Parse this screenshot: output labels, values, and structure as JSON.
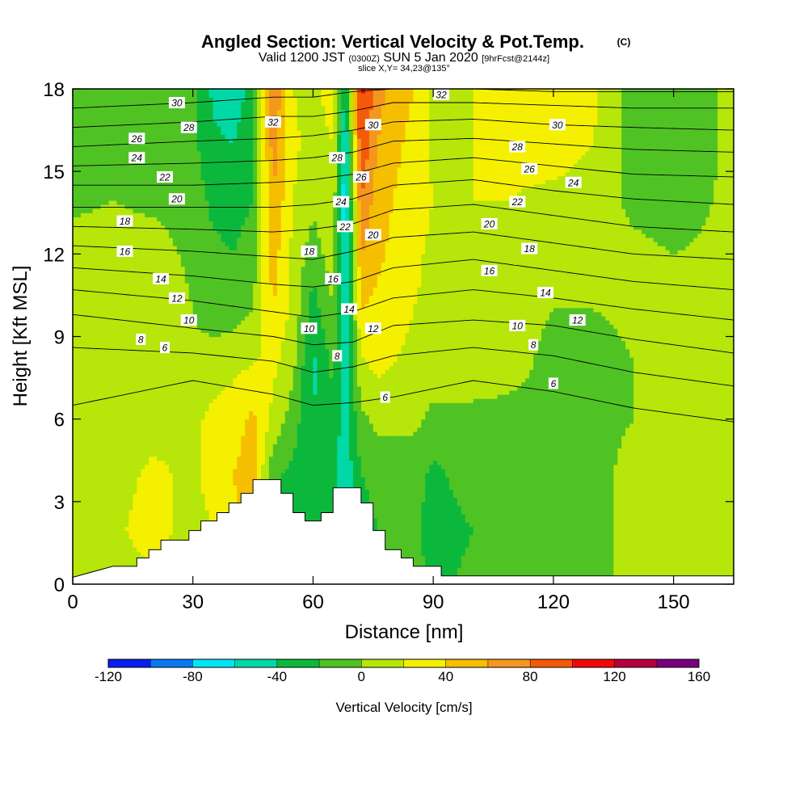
{
  "chart_data": {
    "type": "heatmap",
    "title": "Angled Section: Vertical Velocity & Pot.Temp.",
    "title_suffix": "(C)",
    "subtitle_parts": [
      "Valid 1200 JST",
      "(0300Z)",
      "SUN 5 Jan 2020",
      "[9hrFcst@2144z]"
    ],
    "slice_label": "slice X,Y= 34,23@135°",
    "xlabel": "Distance [nm]",
    "ylabel": "Height [Kft MSL]",
    "xlim": [
      0,
      165
    ],
    "ylim": [
      0,
      18
    ],
    "x_ticks": [
      0,
      30,
      60,
      90,
      120,
      150
    ],
    "y_ticks": [
      0,
      3,
      6,
      9,
      12,
      15,
      18
    ],
    "colorbar": {
      "label": "Vertical Velocity [cm/s]",
      "tick_labels": [
        "-120",
        "-80",
        "-40",
        "0",
        "40",
        "80",
        "120",
        "160"
      ],
      "bounds": [
        -120,
        -100,
        -80,
        -60,
        -40,
        -20,
        0,
        20,
        40,
        60,
        80,
        100,
        120,
        140,
        160
      ],
      "colors": [
        "#0a1ef0",
        "#0a78f5",
        "#00e6f5",
        "#00d9a6",
        "#0cb83c",
        "#50c324",
        "#b6e60a",
        "#f5f000",
        "#f5be00",
        "#f5961e",
        "#f55a0a",
        "#f00a0a",
        "#b4003c",
        "#78007d"
      ]
    },
    "velocity_field": {
      "heights": [
        0,
        2,
        4,
        6,
        8,
        10,
        12,
        14,
        16,
        18
      ],
      "distances": [
        0,
        10,
        20,
        30,
        35,
        40,
        45,
        50,
        55,
        60,
        65,
        68,
        72,
        76,
        80,
        85,
        90,
        100,
        110,
        120,
        130,
        140,
        150,
        165
      ],
      "columns": [
        [
          5,
          5,
          5,
          5,
          10,
          10,
          10,
          -5,
          -5,
          -5
        ],
        [
          10,
          15,
          10,
          5,
          10,
          15,
          10,
          0,
          0,
          0
        ],
        [
          15,
          30,
          25,
          10,
          15,
          15,
          10,
          -5,
          -10,
          -10
        ],
        [
          5,
          10,
          15,
          15,
          5,
          0,
          -5,
          -10,
          -15,
          -10
        ],
        [
          10,
          20,
          30,
          25,
          10,
          -10,
          -15,
          -25,
          -35,
          -45
        ],
        [
          20,
          35,
          40,
          30,
          15,
          -10,
          -20,
          -30,
          -40,
          -55
        ],
        [
          15,
          45,
          50,
          45,
          20,
          0,
          -10,
          -20,
          -25,
          -30
        ],
        [
          -25,
          -20,
          -15,
          15,
          25,
          40,
          50,
          60,
          70,
          80
        ],
        [
          -30,
          -25,
          -25,
          -10,
          5,
          15,
          15,
          20,
          25,
          20
        ],
        [
          -25,
          -30,
          -35,
          -40,
          -45,
          -30,
          -10,
          5,
          10,
          15
        ],
        [
          -20,
          -30,
          -35,
          -25,
          -15,
          0,
          10,
          15,
          20,
          30
        ],
        [
          -40,
          -60,
          -55,
          -50,
          -55,
          -60,
          -70,
          -80,
          -65,
          -45
        ],
        [
          -30,
          -35,
          -20,
          -5,
          15,
          40,
          60,
          80,
          100,
          105
        ],
        [
          -15,
          -20,
          -10,
          5,
          25,
          35,
          45,
          50,
          60,
          70
        ],
        [
          -10,
          -15,
          -10,
          5,
          20,
          30,
          35,
          40,
          45,
          50
        ],
        [
          -10,
          -15,
          -10,
          5,
          15,
          20,
          25,
          30,
          35,
          40
        ],
        [
          -25,
          -30,
          -25,
          -5,
          10,
          15,
          15,
          20,
          15,
          15
        ],
        [
          -15,
          -20,
          -10,
          -5,
          10,
          15,
          15,
          20,
          20,
          20
        ],
        [
          -10,
          -15,
          -10,
          -5,
          5,
          5,
          10,
          20,
          25,
          30
        ],
        [
          -5,
          -10,
          -5,
          -5,
          -5,
          0,
          5,
          15,
          30,
          35
        ],
        [
          0,
          -5,
          -5,
          -5,
          -10,
          0,
          5,
          10,
          20,
          25
        ],
        [
          0,
          5,
          5,
          0,
          0,
          5,
          5,
          -5,
          -10,
          -10
        ],
        [
          10,
          15,
          10,
          5,
          5,
          5,
          0,
          -10,
          -15,
          -15
        ],
        [
          5,
          5,
          5,
          5,
          5,
          0,
          5,
          5,
          5,
          5
        ]
      ]
    },
    "terrain": [
      {
        "x": 0,
        "h": 0.25
      },
      {
        "x": 10,
        "h": 0.65
      },
      {
        "x": 16,
        "h": 0.65
      },
      {
        "x": 16,
        "h": 0.95
      },
      {
        "x": 19,
        "h": 0.95
      },
      {
        "x": 19,
        "h": 1.25
      },
      {
        "x": 22,
        "h": 1.25
      },
      {
        "x": 22,
        "h": 1.6
      },
      {
        "x": 29,
        "h": 1.6
      },
      {
        "x": 29,
        "h": 1.95
      },
      {
        "x": 32,
        "h": 1.95
      },
      {
        "x": 32,
        "h": 2.3
      },
      {
        "x": 36,
        "h": 2.3
      },
      {
        "x": 36,
        "h": 2.6
      },
      {
        "x": 39,
        "h": 2.6
      },
      {
        "x": 39,
        "h": 2.95
      },
      {
        "x": 42,
        "h": 2.95
      },
      {
        "x": 42,
        "h": 3.3
      },
      {
        "x": 45,
        "h": 3.3
      },
      {
        "x": 45,
        "h": 3.8
      },
      {
        "x": 52,
        "h": 3.8
      },
      {
        "x": 52,
        "h": 3.3
      },
      {
        "x": 55,
        "h": 3.3
      },
      {
        "x": 55,
        "h": 2.6
      },
      {
        "x": 58,
        "h": 2.6
      },
      {
        "x": 58,
        "h": 2.3
      },
      {
        "x": 62,
        "h": 2.3
      },
      {
        "x": 62,
        "h": 2.6
      },
      {
        "x": 65,
        "h": 2.6
      },
      {
        "x": 65,
        "h": 3.5
      },
      {
        "x": 72,
        "h": 3.5
      },
      {
        "x": 72,
        "h": 2.95
      },
      {
        "x": 75,
        "h": 2.95
      },
      {
        "x": 75,
        "h": 1.95
      },
      {
        "x": 78,
        "h": 1.95
      },
      {
        "x": 78,
        "h": 1.25
      },
      {
        "x": 82,
        "h": 1.25
      },
      {
        "x": 82,
        "h": 0.95
      },
      {
        "x": 85,
        "h": 0.95
      },
      {
        "x": 85,
        "h": 0.65
      },
      {
        "x": 92,
        "h": 0.65
      },
      {
        "x": 92,
        "h": 0.3
      },
      {
        "x": 165,
        "h": 0.3
      }
    ],
    "isentropes": {
      "values": [
        6,
        8,
        10,
        12,
        14,
        16,
        18,
        20,
        22,
        24,
        26,
        28,
        30,
        32
      ],
      "x": [
        0,
        30,
        50,
        60,
        70,
        80,
        100,
        120,
        140,
        165
      ],
      "heights": [
        [
          6.5,
          7.4,
          6.9,
          6.5,
          6.6,
          6.8,
          7.4,
          7.0,
          6.4,
          5.9
        ],
        [
          8.6,
          8.4,
          8.1,
          7.7,
          7.9,
          8.3,
          8.6,
          8.3,
          7.7,
          7.2
        ],
        [
          9.8,
          9.3,
          9.0,
          8.7,
          8.8,
          9.4,
          9.6,
          9.4,
          8.9,
          8.4
        ],
        [
          10.7,
          10.3,
          9.9,
          9.7,
          9.9,
          10.4,
          10.7,
          10.4,
          10.0,
          9.6
        ],
        [
          11.5,
          11.2,
          10.9,
          10.8,
          11.0,
          11.5,
          11.8,
          11.4,
          11.0,
          10.7
        ],
        [
          12.3,
          12.1,
          11.9,
          11.8,
          12.1,
          12.6,
          12.8,
          12.4,
          12.0,
          11.8
        ],
        [
          13.0,
          12.9,
          12.8,
          12.9,
          13.1,
          13.6,
          13.8,
          13.4,
          13.0,
          12.8
        ],
        [
          13.7,
          13.7,
          13.7,
          13.8,
          14.0,
          14.5,
          14.7,
          14.3,
          14.0,
          13.8
        ],
        [
          14.5,
          14.5,
          14.6,
          14.7,
          14.9,
          15.3,
          15.5,
          15.2,
          14.9,
          14.8
        ],
        [
          15.2,
          15.3,
          15.4,
          15.5,
          15.7,
          16.1,
          16.2,
          16.0,
          15.8,
          15.7
        ],
        [
          15.9,
          16.1,
          16.2,
          16.3,
          16.5,
          16.8,
          16.9,
          16.7,
          16.6,
          16.5
        ],
        [
          16.6,
          16.8,
          17.0,
          17.0,
          17.2,
          17.5,
          17.5,
          17.4,
          17.3,
          17.3
        ],
        [
          17.3,
          17.5,
          17.7,
          17.7,
          17.9,
          18.0,
          18.0,
          17.9,
          17.9,
          17.9
        ],
        [
          18.0,
          18.0,
          18.0,
          18.0,
          18.0,
          18.0,
          18.0,
          18.0,
          18.0,
          18.0
        ]
      ]
    },
    "contour_labels": [
      {
        "text": "30",
        "x": 26,
        "y": 17.5
      },
      {
        "text": "28",
        "x": 29,
        "y": 16.6
      },
      {
        "text": "26",
        "x": 16,
        "y": 16.2
      },
      {
        "text": "24",
        "x": 16,
        "y": 15.5
      },
      {
        "text": "22",
        "x": 23,
        "y": 14.8
      },
      {
        "text": "20",
        "x": 26,
        "y": 14.0
      },
      {
        "text": "18",
        "x": 13,
        "y": 13.2
      },
      {
        "text": "16",
        "x": 13,
        "y": 12.1
      },
      {
        "text": "14",
        "x": 22,
        "y": 11.1
      },
      {
        "text": "12",
        "x": 26,
        "y": 10.4
      },
      {
        "text": "10",
        "x": 29,
        "y": 9.6
      },
      {
        "text": "8",
        "x": 17,
        "y": 8.9
      },
      {
        "text": "6",
        "x": 23,
        "y": 8.6
      },
      {
        "text": "32",
        "x": 50,
        "y": 16.8
      },
      {
        "text": "28",
        "x": 66,
        "y": 15.5
      },
      {
        "text": "26",
        "x": 72,
        "y": 14.8
      },
      {
        "text": "30",
        "x": 75,
        "y": 16.7
      },
      {
        "text": "24",
        "x": 67,
        "y": 13.9
      },
      {
        "text": "22",
        "x": 68,
        "y": 13.0
      },
      {
        "text": "20",
        "x": 75,
        "y": 12.7
      },
      {
        "text": "18",
        "x": 59,
        "y": 12.1
      },
      {
        "text": "16",
        "x": 65,
        "y": 11.1
      },
      {
        "text": "14",
        "x": 69,
        "y": 10.0
      },
      {
        "text": "12",
        "x": 75,
        "y": 9.3
      },
      {
        "text": "10",
        "x": 59,
        "y": 9.3
      },
      {
        "text": "8",
        "x": 66,
        "y": 8.3
      },
      {
        "text": "6",
        "x": 78,
        "y": 6.8
      },
      {
        "text": "32",
        "x": 92,
        "y": 17.8
      },
      {
        "text": "30",
        "x": 121,
        "y": 16.7
      },
      {
        "text": "28",
        "x": 111,
        "y": 15.9
      },
      {
        "text": "26",
        "x": 114,
        "y": 15.1
      },
      {
        "text": "24",
        "x": 125,
        "y": 14.6
      },
      {
        "text": "22",
        "x": 111,
        "y": 13.9
      },
      {
        "text": "20",
        "x": 104,
        "y": 13.1
      },
      {
        "text": "18",
        "x": 114,
        "y": 12.2
      },
      {
        "text": "16",
        "x": 104,
        "y": 11.4
      },
      {
        "text": "14",
        "x": 118,
        "y": 10.6
      },
      {
        "text": "12",
        "x": 126,
        "y": 9.6
      },
      {
        "text": "10",
        "x": 111,
        "y": 9.4
      },
      {
        "text": "8",
        "x": 115,
        "y": 8.7
      },
      {
        "text": "6",
        "x": 120,
        "y": 7.3
      }
    ]
  }
}
